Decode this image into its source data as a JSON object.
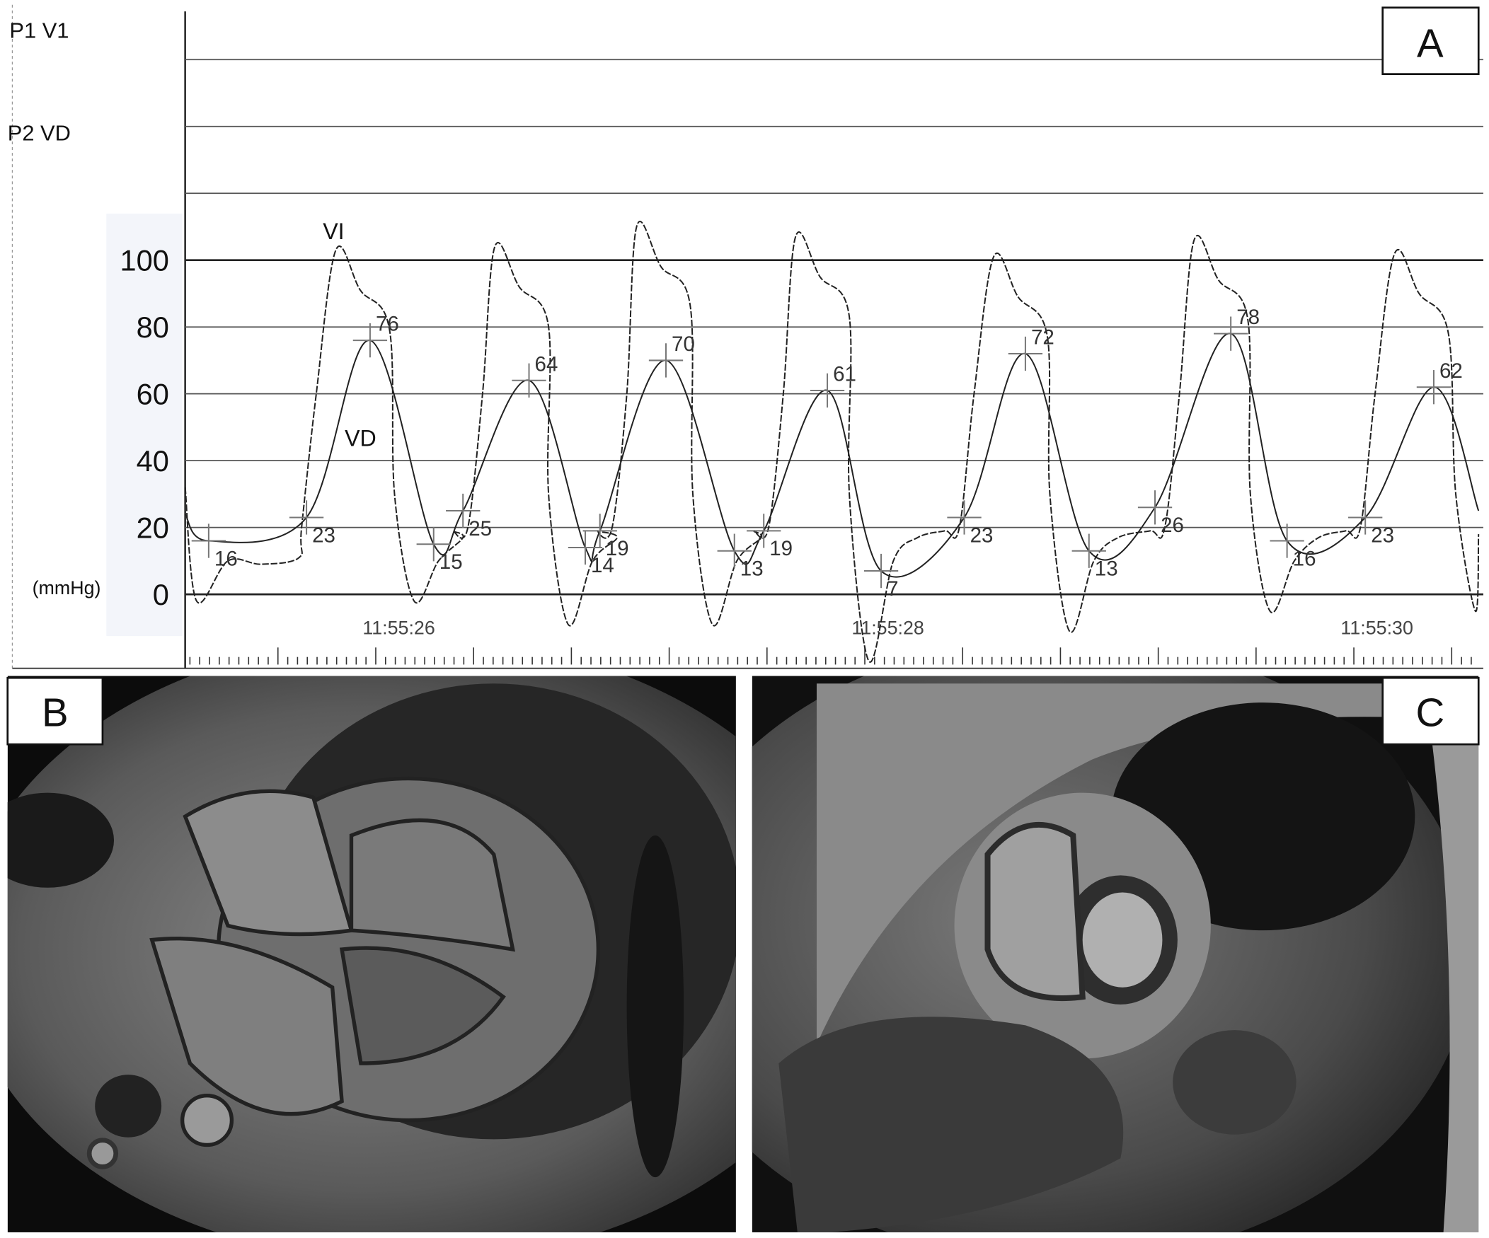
{
  "panels": {
    "a_label": "A",
    "b_label": "B",
    "c_label": "C"
  },
  "channels": {
    "p1": "P1 V1",
    "p2": "P2 VD"
  },
  "chart_data": {
    "type": "line",
    "ylabel": "(mmHg)",
    "ylim": [
      -20,
      160
    ],
    "yticks": [
      0,
      20,
      40,
      60,
      80,
      100
    ],
    "gridlines": [
      0,
      20,
      40,
      60,
      80,
      100,
      120,
      140,
      160
    ],
    "grid": true,
    "xticks": [
      "11:55:26",
      "11:55:28",
      "11:55:30"
    ],
    "series": [
      {
        "name": "VI",
        "beats": [
          {
            "start": "11:55:25.70",
            "peak_t": "11:55:25.82",
            "peak": 103,
            "min_t": "11:55:26.14",
            "min": -2
          },
          {
            "start": "11:55:26.38",
            "peak_t": "11:55:26.47",
            "peak": 104,
            "min_t": "11:55:26.77",
            "min": -9
          },
          {
            "start": "11:55:26.97",
            "peak_t": "11:55:27.05",
            "peak": 110,
            "min_t": "11:55:27.36",
            "min": -9
          },
          {
            "start": "11:55:27.61",
            "peak_t": "11:55:27.70",
            "peak": 107,
            "min_t": "11:55:28.00",
            "min": -20
          },
          {
            "start": "11:55:28.39",
            "peak_t": "11:55:28.51",
            "peak": 101,
            "min_t": "11:55:28.82",
            "min": -11
          },
          {
            "start": "11:55:29.23",
            "peak_t": "11:55:29.33",
            "peak": 106,
            "min_t": "11:55:29.64",
            "min": -5
          },
          {
            "start": "11:55:30.03",
            "peak_t": "11:55:30.15",
            "peak": 102,
            "min_t": "11:55:30.48",
            "min": -5
          }
        ]
      },
      {
        "name": "VD",
        "annotations": [
          {
            "t": "11:55:25.30",
            "value": 16
          },
          {
            "t": "11:55:25.70",
            "value": 23
          },
          {
            "t": "11:55:25.96",
            "value": 76
          },
          {
            "t": "11:55:26.22",
            "value": 15
          },
          {
            "t": "11:55:26.34",
            "value": 25
          },
          {
            "t": "11:55:26.61",
            "value": 64
          },
          {
            "t": "11:55:26.84",
            "value": 14
          },
          {
            "t": "11:55:26.90",
            "value": 19
          },
          {
            "t": "11:55:27.17",
            "value": 70
          },
          {
            "t": "11:55:27.45",
            "value": 13
          },
          {
            "t": "11:55:27.57",
            "value": 19
          },
          {
            "t": "11:55:27.83",
            "value": 61
          },
          {
            "t": "11:55:28.05",
            "value": 7
          },
          {
            "t": "11:55:28.39",
            "value": 23
          },
          {
            "t": "11:55:28.64",
            "value": 72
          },
          {
            "t": "11:55:28.90",
            "value": 13
          },
          {
            "t": "11:55:29.17",
            "value": 26
          },
          {
            "t": "11:55:29.48",
            "value": 78
          },
          {
            "t": "11:55:29.71",
            "value": 16
          },
          {
            "t": "11:55:30.03",
            "value": 23
          },
          {
            "t": "11:55:30.31",
            "value": 62
          }
        ]
      }
    ]
  }
}
